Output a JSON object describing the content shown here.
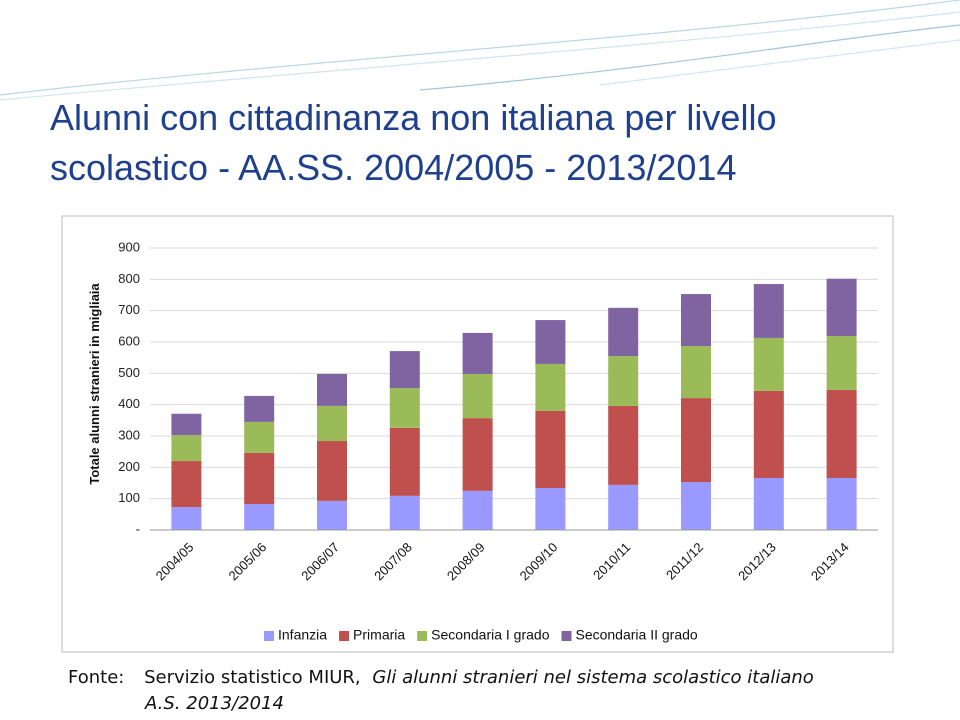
{
  "title": [
    "Alunni con cittadinanza non italiana per livello",
    "scolastico - AA.SS. 2004/2005 - 2013/2014"
  ],
  "chart_data": {
    "type": "stacked_bar",
    "y_label": "Totale alunni stranieri in migliaia",
    "categories": [
      "2004/05",
      "2005/06",
      "2006/07",
      "2007/08",
      "2008/09",
      "2009/10",
      "2010/11",
      "2011/12",
      "2012/13",
      "2013/14"
    ],
    "series": [
      {
        "name": "Infanzia",
        "color": "#9999ff",
        "values": [
          73,
          83,
          93,
          109,
          125,
          134,
          144,
          153,
          166,
          166
        ]
      },
      {
        "name": "Primaria",
        "color": "#c0504d",
        "values": [
          147,
          163,
          191,
          217,
          232,
          246,
          252,
          268,
          278,
          281
        ]
      },
      {
        "name": "Secondaria I grado",
        "color": "#9bbb59",
        "values": [
          83,
          99,
          112,
          127,
          141,
          150,
          159,
          166,
          169,
          172
        ]
      },
      {
        "name": "Secondaria II grado",
        "color": "#8064a2",
        "values": [
          68,
          83,
          102,
          118,
          131,
          140,
          154,
          166,
          172,
          183
        ]
      }
    ],
    "ylim": [
      0,
      900
    ],
    "yticks": [
      {
        "value": 0,
        "label": "-"
      },
      100,
      200,
      300,
      400,
      500,
      600,
      700,
      800,
      900
    ],
    "grid": true,
    "legend": "bottom"
  },
  "source": {
    "label": "Fonte:",
    "text": "Servizio statistico MIUR,",
    "publication": "Gli alunni stranieri nel sistema scolastico italiano",
    "publication_year": "A.S. 2013/2014"
  }
}
